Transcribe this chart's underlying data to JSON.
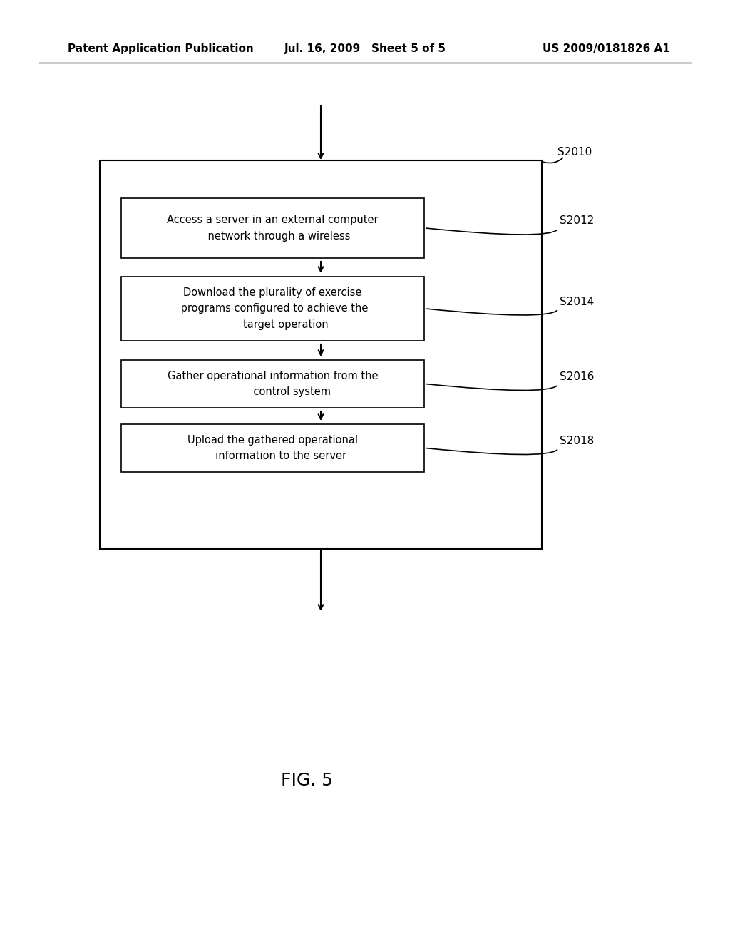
{
  "header_left": "Patent Application Publication",
  "header_mid": "Jul. 16, 2009   Sheet 5 of 5",
  "header_right": "US 2009/0181826 A1",
  "fig_label": "FIG. 5",
  "outer_box_label": "S2010",
  "steps": [
    {
      "label": "S2012",
      "text": "Access a server in an external computer\n    network through a wireless"
    },
    {
      "label": "S2014",
      "text": "Download the plurality of exercise\n programs configured to achieve the\n        target operation"
    },
    {
      "label": "S2016",
      "text": "Gather operational information from the\n            control system"
    },
    {
      "label": "S2018",
      "text": "Upload the gathered operational\n     information to the server"
    }
  ],
  "bg_color": "#ffffff",
  "box_edge_color": "#000000",
  "text_color": "#000000",
  "arrow_color": "#000000"
}
